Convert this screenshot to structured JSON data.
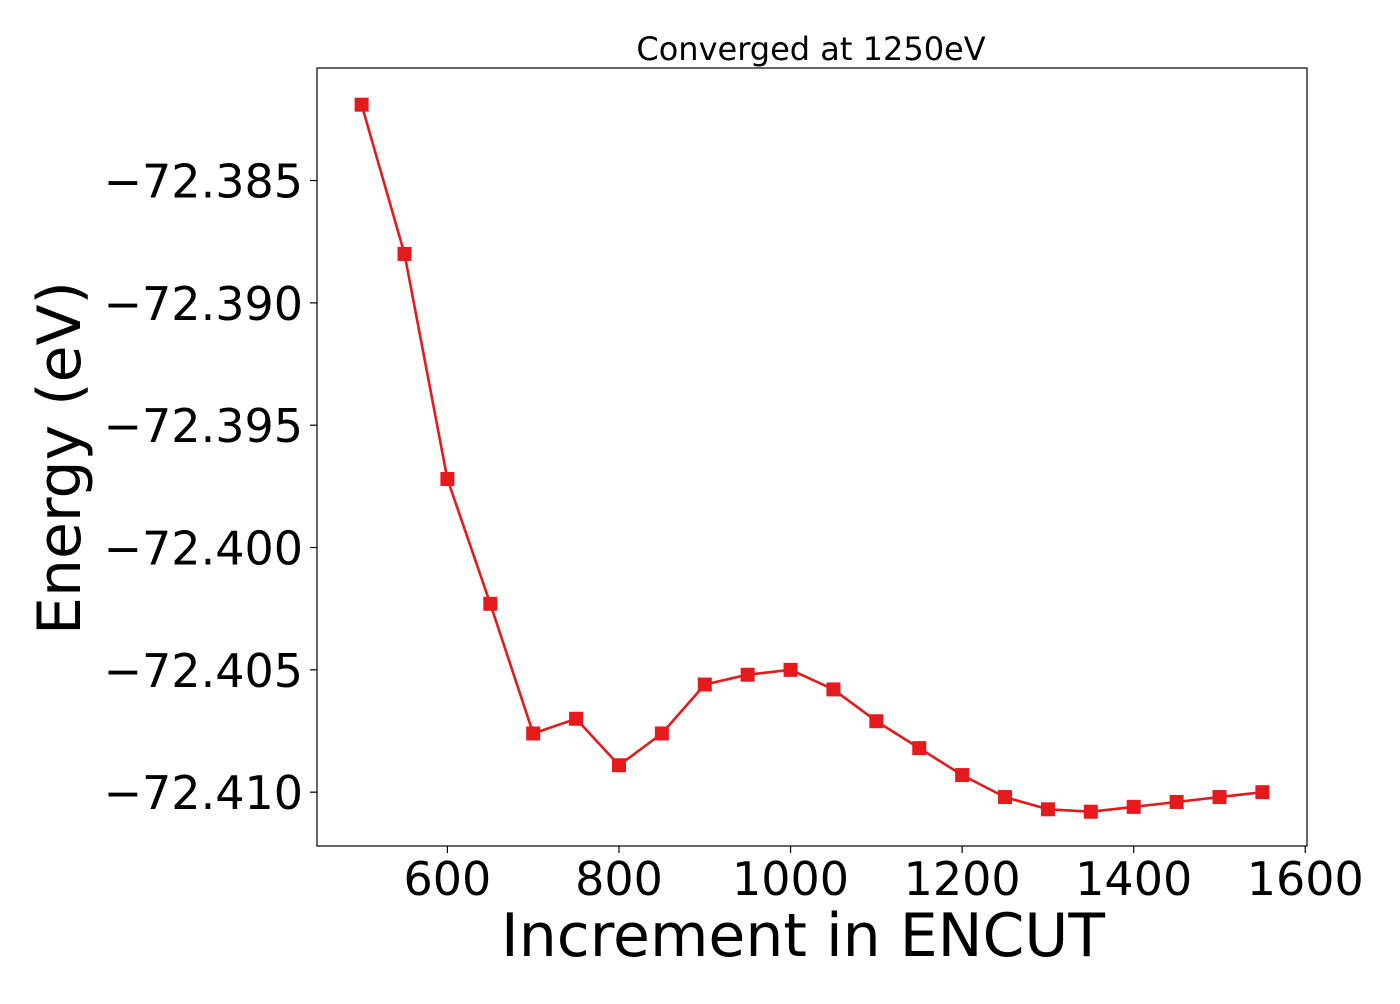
{
  "chart_data": {
    "type": "line",
    "title": "Converged at 1250eV",
    "xlabel": "Increment in ENCUT",
    "ylabel": "Energy (eV)",
    "xlim": [
      448,
      1602
    ],
    "ylim": [
      -72.4122,
      -72.3804
    ],
    "xticks": [
      600,
      800,
      1000,
      1200,
      1400,
      1600
    ],
    "xtick_labels": [
      "600",
      "800",
      "1000",
      "1200",
      "1400",
      "1600"
    ],
    "yticks": [
      -72.385,
      -72.39,
      -72.395,
      -72.4,
      -72.405,
      -72.41
    ],
    "ytick_labels": [
      "−72.385",
      "−72.390",
      "−72.395",
      "−72.400",
      "−72.405",
      "−72.410"
    ],
    "grid": false,
    "series": [
      {
        "color": "#e41a1c",
        "marker": "square",
        "x": [
          500,
          550,
          600,
          650,
          700,
          750,
          800,
          850,
          900,
          950,
          1000,
          1050,
          1100,
          1150,
          1200,
          1250,
          1300,
          1350,
          1400,
          1450,
          1500,
          1550
        ],
        "y": [
          -72.3819,
          -72.388,
          -72.3972,
          -72.4023,
          -72.4076,
          -72.407,
          -72.4089,
          -72.4076,
          -72.4056,
          -72.4052,
          -72.405,
          -72.4058,
          -72.4071,
          -72.4082,
          -72.4093,
          -72.4102,
          -72.4107,
          -72.4108,
          -72.4106,
          -72.4104,
          -72.4102,
          -72.41
        ]
      }
    ]
  }
}
